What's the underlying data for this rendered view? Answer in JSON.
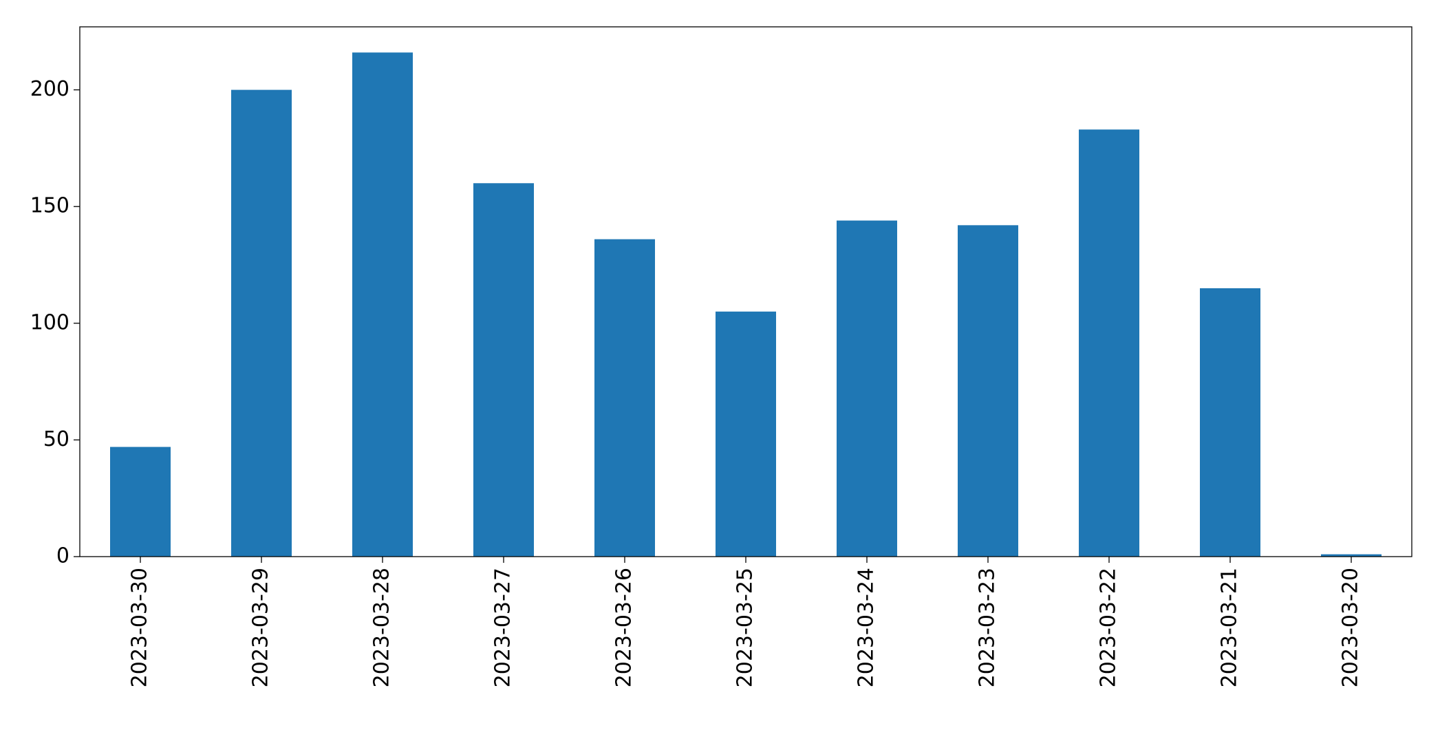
{
  "chart_data": {
    "type": "bar",
    "categories": [
      "2023-03-30",
      "2023-03-29",
      "2023-03-28",
      "2023-03-27",
      "2023-03-26",
      "2023-03-25",
      "2023-03-24",
      "2023-03-23",
      "2023-03-22",
      "2023-03-21",
      "2023-03-20"
    ],
    "values": [
      47,
      200,
      216,
      160,
      136,
      105,
      144,
      142,
      183,
      115,
      1
    ],
    "color": "#1f77b4",
    "ylim": [
      0,
      227
    ],
    "yticks": [
      0,
      50,
      100,
      150,
      200
    ],
    "grid": false
  }
}
